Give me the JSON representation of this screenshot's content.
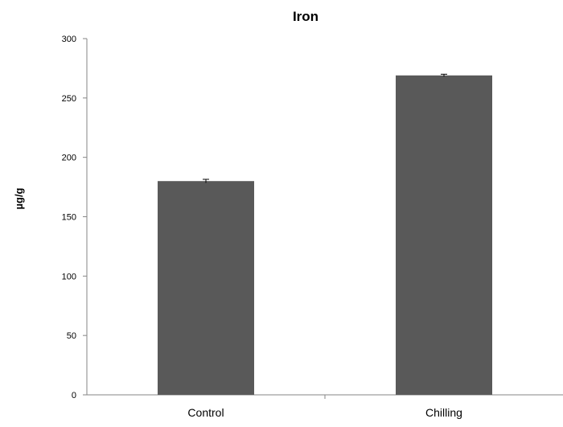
{
  "chart_data": {
    "type": "bar",
    "title": "Iron",
    "ylabel": "µg/g",
    "xlabel": "",
    "categories": [
      "Control",
      "Chilling"
    ],
    "values": [
      180,
      269
    ],
    "errors": [
      1.5,
      1.0
    ],
    "ylim": [
      0,
      300
    ],
    "yticks": [
      0,
      50,
      100,
      150,
      200,
      250,
      300
    ],
    "grid": false,
    "legend": "none",
    "bar_color": "#595959",
    "axis_color": "#868686"
  }
}
